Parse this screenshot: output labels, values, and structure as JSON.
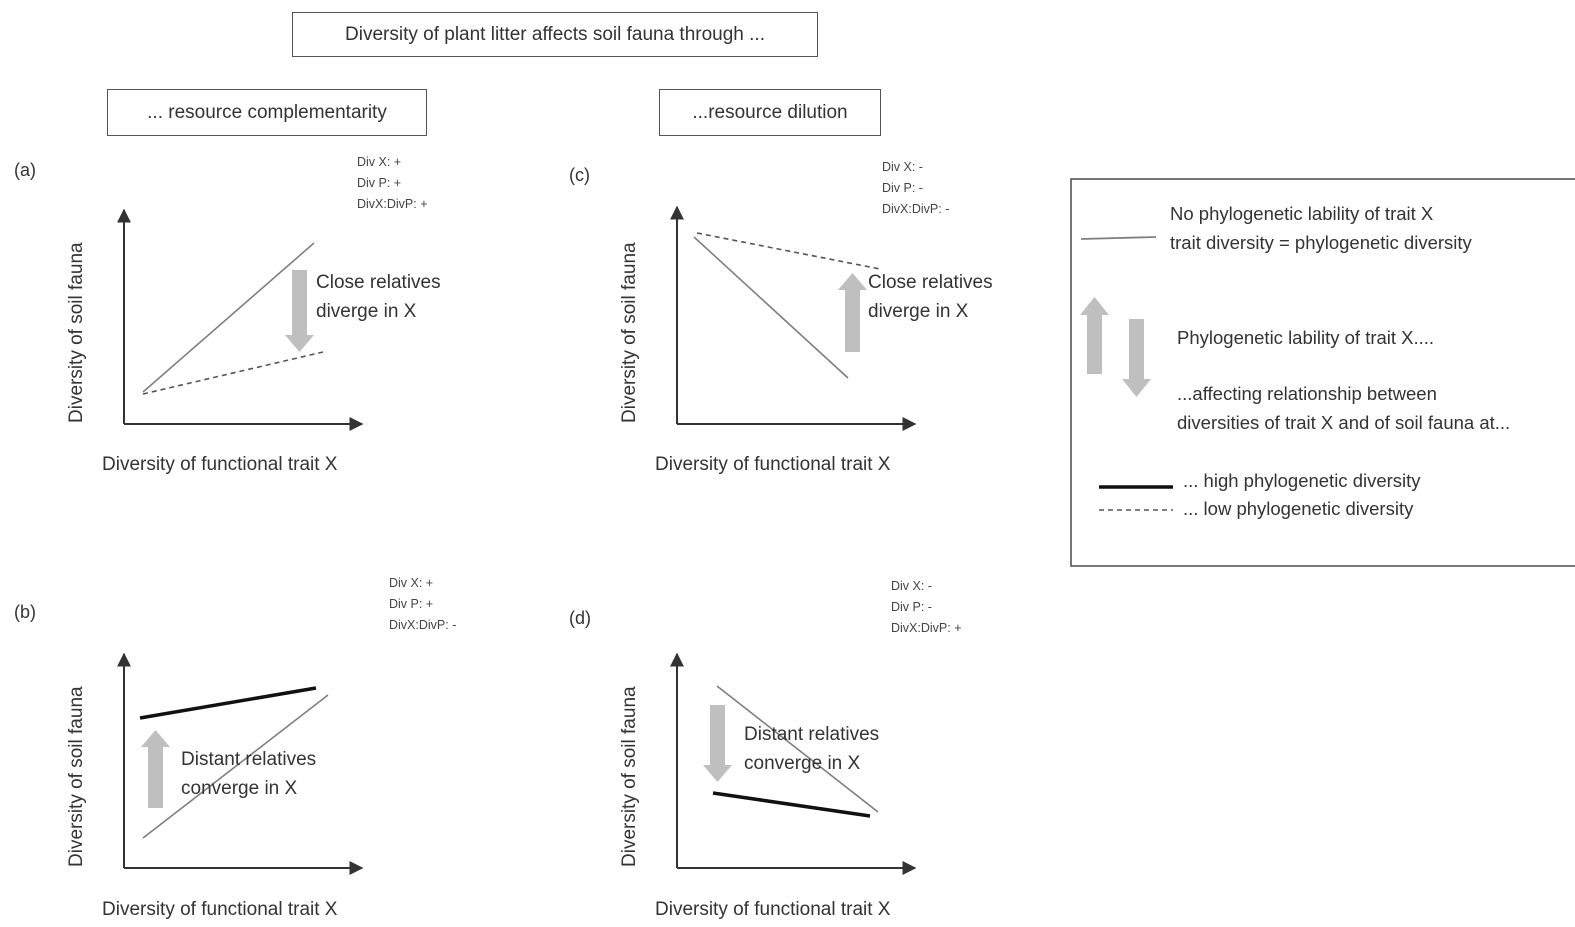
{
  "title": "Diversity of plant litter affects soil fauna through ...",
  "mechanisms": {
    "left": "... resource complementarity",
    "right": "...resource dilution"
  },
  "axes": {
    "x_label": "Diversity of functional trait X",
    "y_label": "Diversity of soil fauna"
  },
  "panels": [
    {
      "id": "(a)",
      "effects": [
        "Div X:  +",
        "Div P:  +",
        "DivX:DivP:  +"
      ],
      "annotation": [
        "Close relatives",
        "diverge in X"
      ],
      "arrow_direction": "down"
    },
    {
      "id": "(b)",
      "effects": [
        "Div X:  +",
        "Div P:  +",
        "DivX:DivP:  -"
      ],
      "annotation": [
        "Distant relatives",
        "converge in X"
      ],
      "arrow_direction": "up"
    },
    {
      "id": "(c)",
      "effects": [
        "Div X:  -",
        "Div P:  -",
        "DivX:DivP:  -"
      ],
      "annotation": [
        "Close relatives",
        "diverge in X"
      ],
      "arrow_direction": "up"
    },
    {
      "id": "(d)",
      "effects": [
        "Div X:  -",
        "Div P:  -",
        "DivX:DivP:  +"
      ],
      "annotation": [
        "Distant relatives",
        "converge in X"
      ],
      "arrow_direction": "down"
    }
  ],
  "legend": {
    "no_lability_line1": "No phylogenetic lability of trait X",
    "no_lability_line2": "trait diversity = phylogenetic diversity",
    "lability": "Phylogenetic lability of trait X....",
    "affecting_line1": "...affecting relationship between",
    "affecting_line2": "diversities of trait X and of soil fauna at...",
    "high": "... high phylogenetic diversity",
    "low": "... low phylogenetic diversity"
  },
  "colors": {
    "axis": "#333333",
    "thin_line": "#7f7f7f",
    "thick_line": "#111111",
    "dashed_line": "#555555",
    "arrow": "#bfbfbf",
    "box_border": "#555555"
  }
}
